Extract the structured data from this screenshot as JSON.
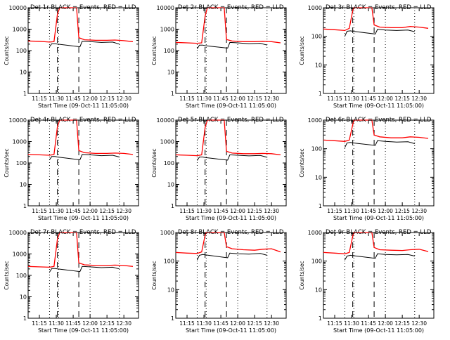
{
  "figure": {
    "background": "#ffffff",
    "colors": {
      "events": "#000000",
      "lld": "#ff0000",
      "axis": "#000000"
    }
  },
  "chart_data": [
    {
      "type": "line",
      "title": "Det 1r BLACK = Events, RED = LLD",
      "xlabel": "Start Time (09-Oct-11 11:05:00)",
      "ylabel": "Counts/sec",
      "yscale": "log",
      "ylim": [
        1,
        10000
      ],
      "yticks": [
        "1",
        "10",
        "100",
        "1000",
        "10000"
      ],
      "xticks": [
        "11:15",
        "11:30",
        "11:45",
        "12:00",
        "12:15",
        "12:30"
      ],
      "dotted_markers": [
        "11:24",
        "11:32",
        "12:00",
        "12:26"
      ],
      "dashed_markers": [
        "11:31",
        "11:50"
      ],
      "annotation": "",
      "series": [
        {
          "name": "LLD",
          "color": "#ff0000",
          "x": [
            "11:05",
            "11:15",
            "11:24",
            "11:28",
            "11:31",
            "11:33",
            "11:36",
            "11:40",
            "11:44",
            "11:48",
            "11:50",
            "11:55",
            "12:05",
            "12:15",
            "12:22",
            "12:30",
            "12:38"
          ],
          "y": [
            280,
            270,
            250,
            260,
            5000,
            10000,
            10000,
            10000,
            10000,
            10000,
            400,
            320,
            300,
            300,
            310,
            290,
            260
          ]
        },
        {
          "name": "Events",
          "color": "#000000",
          "x": [
            "11:24",
            "11:26",
            "11:29",
            "11:31",
            "11:51",
            "11:53",
            "12:00",
            "12:10",
            "12:20",
            "12:26"
          ],
          "y": [
            150,
            210,
            210,
            200,
            150,
            270,
            260,
            240,
            250,
            200
          ]
        }
      ]
    },
    {
      "type": "line",
      "title": "Det 2r BLACK = Events, RED = LLD",
      "xlabel": "Start Time (09-Oct-11 11:05:00)",
      "ylabel": "Counts/sec",
      "yscale": "log",
      "ylim": [
        1,
        10000
      ],
      "yticks": [
        "1",
        "10",
        "100",
        "1000",
        "10000"
      ],
      "xticks": [
        "11:15",
        "11:30",
        "11:45",
        "12:00",
        "12:15",
        "12:30"
      ],
      "dotted_markers": [
        "11:24",
        "11:32",
        "12:00",
        "12:26"
      ],
      "dashed_markers": [
        "11:31",
        "11:50"
      ],
      "annotation": "",
      "series": [
        {
          "name": "LLD",
          "color": "#ff0000",
          "x": [
            "11:05",
            "11:15",
            "11:24",
            "11:28",
            "11:31",
            "11:33",
            "11:36",
            "11:40",
            "11:44",
            "11:48",
            "11:50",
            "11:55",
            "12:05",
            "12:15",
            "12:22",
            "12:30",
            "12:38"
          ],
          "y": [
            240,
            230,
            220,
            230,
            4000,
            10000,
            10000,
            10000,
            10000,
            10000,
            330,
            280,
            260,
            260,
            270,
            260,
            230
          ]
        },
        {
          "name": "Events",
          "color": "#000000",
          "x": [
            "11:24",
            "11:26",
            "11:29",
            "11:31",
            "11:51",
            "11:53",
            "12:00",
            "12:10",
            "12:20",
            "12:26"
          ],
          "y": [
            120,
            180,
            180,
            170,
            130,
            240,
            230,
            210,
            220,
            180
          ]
        }
      ]
    },
    {
      "type": "line",
      "title": "Det 3r BLACK = Events, RED = LLD",
      "xlabel": "Start Time (09-Oct-11 11:05:00)",
      "ylabel": "Counts/sec",
      "yscale": "log",
      "ylim": [
        1,
        1000
      ],
      "yticks": [
        "1",
        "10",
        "100",
        "1000"
      ],
      "xticks": [
        "11:15",
        "11:30",
        "11:45",
        "12:00",
        "12:15",
        "12:30"
      ],
      "dotted_markers": [
        "11:24",
        "11:32",
        "12:00",
        "12:26"
      ],
      "dashed_markers": [
        "11:31",
        "11:50"
      ],
      "annotation": "",
      "series": [
        {
          "name": "LLD",
          "color": "#ff0000",
          "x": [
            "11:05",
            "11:15",
            "11:24",
            "11:28",
            "11:31",
            "11:32",
            "11:36",
            "11:40",
            "11:44",
            "11:48",
            "11:50",
            "11:55",
            "12:05",
            "12:15",
            "12:22",
            "12:30",
            "12:38"
          ],
          "y": [
            180,
            170,
            160,
            190,
            800,
            1000,
            1000,
            1000,
            1000,
            1000,
            250,
            210,
            200,
            200,
            220,
            210,
            190
          ]
        },
        {
          "name": "Events",
          "color": "#000000",
          "x": [
            "11:24",
            "11:26",
            "11:29",
            "11:31",
            "11:51",
            "11:53",
            "12:00",
            "12:10",
            "12:20",
            "12:26"
          ],
          "y": [
            100,
            150,
            155,
            150,
            120,
            175,
            165,
            160,
            165,
            145
          ]
        }
      ]
    },
    {
      "type": "line",
      "title": "Det 4r BLACK = Events, RED = LLD",
      "xlabel": "Start Time (09-Oct-11 11:05:00)",
      "ylabel": "Counts/sec",
      "yscale": "log",
      "ylim": [
        1,
        10000
      ],
      "yticks": [
        "1",
        "10",
        "100",
        "1000",
        "10000"
      ],
      "xticks": [
        "11:15",
        "11:30",
        "11:45",
        "12:00",
        "12:15",
        "12:30"
      ],
      "dotted_markers": [
        "11:24",
        "11:32",
        "12:00",
        "12:26"
      ],
      "dashed_markers": [
        "11:31",
        "11:50"
      ],
      "annotation": "",
      "series": [
        {
          "name": "LLD",
          "color": "#ff0000",
          "x": [
            "11:05",
            "11:15",
            "11:24",
            "11:28",
            "11:31",
            "11:33",
            "11:36",
            "11:40",
            "11:44",
            "11:48",
            "11:50",
            "11:55",
            "12:05",
            "12:15",
            "12:22",
            "12:30",
            "12:38"
          ],
          "y": [
            250,
            240,
            230,
            250,
            5000,
            10000,
            10000,
            10000,
            10000,
            10000,
            380,
            300,
            280,
            280,
            290,
            280,
            250
          ]
        },
        {
          "name": "Events",
          "color": "#000000",
          "x": [
            "11:24",
            "11:26",
            "11:29",
            "11:31",
            "11:51",
            "11:53",
            "12:00",
            "12:10",
            "12:20",
            "12:26"
          ],
          "y": [
            140,
            200,
            200,
            190,
            140,
            250,
            240,
            220,
            230,
            190
          ]
        }
      ]
    },
    {
      "type": "line",
      "title": "Det 5r BLACK = Events, RED = LLD",
      "xlabel": "Start Time (09-Oct-11 11:05:00)",
      "ylabel": "Counts/sec",
      "yscale": "log",
      "ylim": [
        1,
        10000
      ],
      "yticks": [
        "1",
        "10",
        "100",
        "1000",
        "10000"
      ],
      "xticks": [
        "11:15",
        "11:30",
        "11:45",
        "12:00",
        "12:15",
        "12:30"
      ],
      "dotted_markers": [
        "11:24",
        "11:32",
        "12:00",
        "12:26"
      ],
      "dashed_markers": [
        "11:31",
        "11:50"
      ],
      "annotation": "",
      "series": [
        {
          "name": "LLD",
          "color": "#ff0000",
          "x": [
            "11:05",
            "11:15",
            "11:24",
            "11:28",
            "11:31",
            "11:33",
            "11:36",
            "11:40",
            "11:44",
            "11:48",
            "11:50",
            "11:55",
            "12:05",
            "12:15",
            "12:22",
            "12:30",
            "12:38"
          ],
          "y": [
            240,
            230,
            220,
            240,
            4500,
            10000,
            10000,
            10000,
            10000,
            10000,
            350,
            290,
            270,
            270,
            280,
            270,
            240
          ]
        },
        {
          "name": "Events",
          "color": "#000000",
          "x": [
            "11:24",
            "11:26",
            "11:29",
            "11:31",
            "11:51",
            "11:53",
            "12:00",
            "12:10",
            "12:20",
            "12:26"
          ],
          "y": [
            130,
            190,
            190,
            180,
            135,
            240,
            230,
            215,
            225,
            185
          ]
        }
      ]
    },
    {
      "type": "line",
      "title": "Det 6r BLACK = Events, RED = LLD",
      "xlabel": "Start Time (09-Oct-11 11:05:00)",
      "ylabel": "Counts/sec",
      "yscale": "log",
      "ylim": [
        1,
        1000
      ],
      "yticks": [
        "1",
        "10",
        "100",
        "1000"
      ],
      "xticks": [
        "11:15",
        "11:30",
        "11:45",
        "12:00",
        "12:15",
        "12:30"
      ],
      "dotted_markers": [
        "11:24",
        "11:32",
        "12:00",
        "12:26"
      ],
      "dashed_markers": [
        "11:31",
        "11:50"
      ],
      "annotation": "",
      "series": [
        {
          "name": "LLD",
          "color": "#ff0000",
          "x": [
            "11:05",
            "11:15",
            "11:24",
            "11:28",
            "11:31",
            "11:32",
            "11:36",
            "11:40",
            "11:44",
            "11:48",
            "11:50",
            "11:55",
            "12:05",
            "12:15",
            "12:22",
            "12:30",
            "12:38"
          ],
          "y": [
            200,
            190,
            180,
            200,
            700,
            1000,
            1000,
            1000,
            1000,
            1000,
            300,
            260,
            240,
            240,
            260,
            250,
            230
          ]
        },
        {
          "name": "Events",
          "color": "#000000",
          "x": [
            "11:24",
            "11:26",
            "11:29",
            "11:31",
            "11:51",
            "11:53",
            "12:00",
            "12:10",
            "12:20",
            "12:26"
          ],
          "y": [
            110,
            160,
            165,
            160,
            130,
            190,
            180,
            170,
            175,
            150
          ]
        }
      ]
    },
    {
      "type": "line",
      "title": "Det 7r BLACK = Events, RED = LLD",
      "xlabel": "Start Time (09-Oct-11 11:05:00)",
      "ylabel": "Counts/sec",
      "yscale": "log",
      "ylim": [
        1,
        10000
      ],
      "yticks": [
        "1",
        "10",
        "100",
        "1000",
        "10000"
      ],
      "xticks": [
        "11:15",
        "11:30",
        "11:45",
        "12:00",
        "12:15",
        "12:30"
      ],
      "dotted_markers": [
        "11:24",
        "11:32",
        "12:00",
        "12:26"
      ],
      "dashed_markers": [
        "11:31",
        "11:50"
      ],
      "annotation": "",
      "series": [
        {
          "name": "LLD",
          "color": "#ff0000",
          "x": [
            "11:05",
            "11:15",
            "11:24",
            "11:28",
            "11:31",
            "11:33",
            "11:36",
            "11:40",
            "11:44",
            "11:48",
            "11:50",
            "11:55",
            "12:05",
            "12:15",
            "12:22",
            "12:30",
            "12:38"
          ],
          "y": [
            260,
            250,
            240,
            260,
            5000,
            10000,
            10000,
            10000,
            10000,
            10000,
            380,
            310,
            290,
            290,
            300,
            290,
            260
          ]
        },
        {
          "name": "Events",
          "color": "#000000",
          "x": [
            "11:24",
            "11:26",
            "11:29",
            "11:31",
            "11:51",
            "11:53",
            "12:00",
            "12:10",
            "12:20",
            "12:26"
          ],
          "y": [
            140,
            210,
            210,
            200,
            150,
            260,
            250,
            230,
            240,
            200
          ]
        }
      ]
    },
    {
      "type": "line",
      "title": "Det 8r BLACK = Events, RED = LLD",
      "xlabel": "Start Time (09-Oct-11 11:05:00)",
      "ylabel": "Counts/sec",
      "yscale": "log",
      "ylim": [
        1,
        1000
      ],
      "yticks": [
        "1",
        "10",
        "100",
        "1000"
      ],
      "xticks": [
        "11:15",
        "11:30",
        "11:45",
        "12:00",
        "12:15",
        "12:30"
      ],
      "dotted_markers": [
        "11:24",
        "11:32",
        "12:00",
        "12:26"
      ],
      "dashed_markers": [
        "11:31",
        "11:50"
      ],
      "annotation": "",
      "series": [
        {
          "name": "LLD",
          "color": "#ff0000",
          "x": [
            "11:05",
            "11:15",
            "11:24",
            "11:28",
            "11:31",
            "11:32",
            "11:36",
            "11:40",
            "11:44",
            "11:48",
            "11:50",
            "11:55",
            "12:05",
            "12:15",
            "12:22",
            "12:30",
            "12:38"
          ],
          "y": [
            200,
            190,
            185,
            210,
            800,
            1000,
            1000,
            1000,
            1000,
            1000,
            320,
            270,
            250,
            240,
            260,
            270,
            210
          ]
        },
        {
          "name": "Events",
          "color": "#000000",
          "x": [
            "11:24",
            "11:26",
            "11:29",
            "11:31",
            "11:51",
            "11:53",
            "12:00",
            "12:10",
            "12:20",
            "12:26"
          ],
          "y": [
            110,
            160,
            170,
            165,
            130,
            190,
            180,
            175,
            185,
            160
          ]
        }
      ]
    },
    {
      "type": "line",
      "title": "Det 9r BLACK = Events, RED = LLD",
      "xlabel": "Start Time (09-Oct-11 11:05:00)",
      "ylabel": "Counts/sec",
      "yscale": "log",
      "ylim": [
        1,
        1000
      ],
      "yticks": [
        "1",
        "10",
        "100",
        "1000"
      ],
      "xticks": [
        "11:15",
        "11:30",
        "11:45",
        "12:00",
        "12:15",
        "12:30"
      ],
      "dotted_markers": [
        "11:24",
        "11:32",
        "12:00",
        "12:26"
      ],
      "dashed_markers": [
        "11:31",
        "11:50"
      ],
      "annotation": "",
      "series": [
        {
          "name": "LLD",
          "color": "#ff0000",
          "x": [
            "11:05",
            "11:15",
            "11:24",
            "11:28",
            "11:31",
            "11:32",
            "11:36",
            "11:40",
            "11:44",
            "11:48",
            "11:50",
            "11:55",
            "12:05",
            "12:15",
            "12:22",
            "12:30",
            "12:38"
          ],
          "y": [
            200,
            190,
            180,
            200,
            750,
            1000,
            1000,
            1000,
            1000,
            1000,
            300,
            250,
            240,
            235,
            250,
            260,
            215
          ]
        },
        {
          "name": "Events",
          "color": "#000000",
          "x": [
            "11:24",
            "11:26",
            "11:29",
            "11:31",
            "11:51",
            "11:53",
            "12:00",
            "12:10",
            "12:20",
            "12:26"
          ],
          "y": [
            110,
            150,
            160,
            155,
            125,
            180,
            170,
            165,
            170,
            150
          ]
        }
      ]
    }
  ]
}
